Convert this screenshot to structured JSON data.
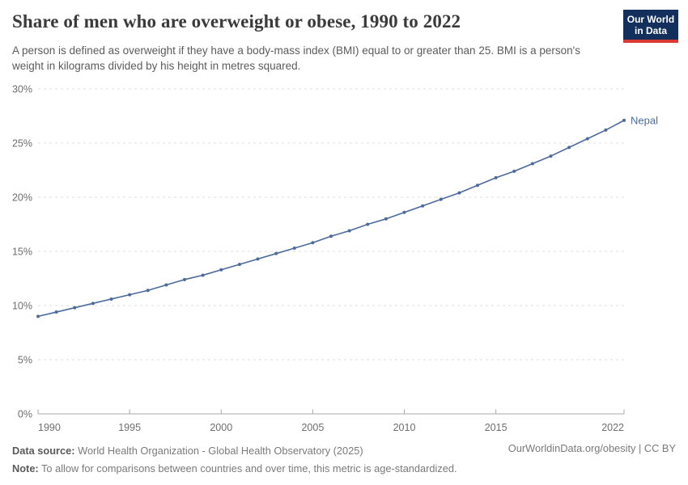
{
  "header": {
    "title": "Share of men who are overweight or obese, 1990 to 2022",
    "subtitle": "A person is defined as overweight if they have a body-mass index (BMI) equal to or greater than 25. BMI is a person's weight in kilograms divided by his height in metres squared.",
    "logo": {
      "line1": "Our World",
      "line2": "in Data"
    }
  },
  "chart_data": {
    "type": "line",
    "title": "Share of men who are overweight or obese, 1990 to 2022",
    "xlabel": "",
    "ylabel": "",
    "xlim": [
      1990,
      2022
    ],
    "ylim": [
      0,
      30
    ],
    "grid": "horizontal-dashed",
    "legend_position": "end-of-line",
    "x_ticks": [
      1990,
      1995,
      2000,
      2005,
      2010,
      2015,
      2022
    ],
    "y_ticks": [
      0,
      5,
      10,
      15,
      20,
      25,
      30
    ],
    "y_tick_suffix": "%",
    "line_color": "#4C6A9C",
    "series": [
      {
        "name": "Nepal",
        "x": [
          1990,
          1991,
          1992,
          1993,
          1994,
          1995,
          1996,
          1997,
          1998,
          1999,
          2000,
          2001,
          2002,
          2003,
          2004,
          2005,
          2006,
          2007,
          2008,
          2009,
          2010,
          2011,
          2012,
          2013,
          2014,
          2015,
          2016,
          2017,
          2018,
          2019,
          2020,
          2021,
          2022
        ],
        "values": [
          9.0,
          9.4,
          9.8,
          10.2,
          10.6,
          11.0,
          11.4,
          11.9,
          12.4,
          12.8,
          13.3,
          13.8,
          14.3,
          14.8,
          15.3,
          15.8,
          16.4,
          16.9,
          17.5,
          18.0,
          18.6,
          19.2,
          19.8,
          20.4,
          21.1,
          21.8,
          22.4,
          23.1,
          23.8,
          24.6,
          25.4,
          26.2,
          27.1
        ]
      }
    ]
  },
  "footer": {
    "datasource_label": "Data source:",
    "datasource": "World Health Organization - Global Health Observatory (2025)",
    "note_label": "Note:",
    "note": "To allow for comparisons between countries and over time, this metric is age-standardized.",
    "link": "OurWorldinData.org/obesity | CC BY"
  }
}
